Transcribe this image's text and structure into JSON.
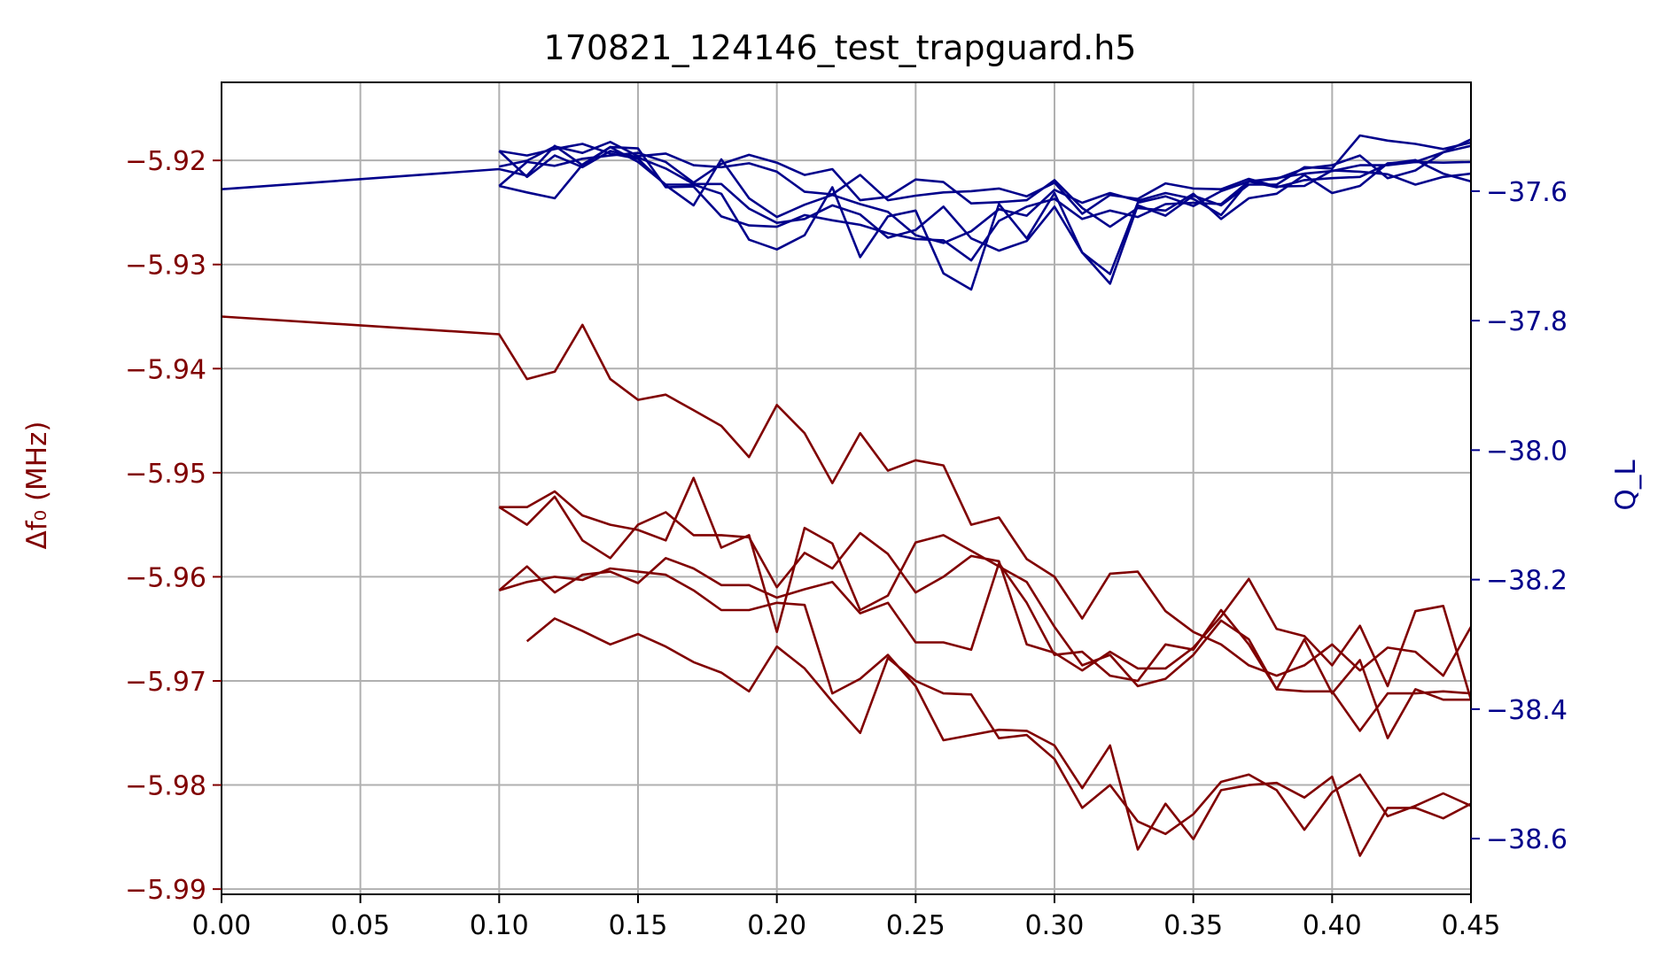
{
  "chart_data": {
    "type": "line",
    "title": "170821_124146_test_trapguard.h5",
    "xlabel": "",
    "xlim": [
      0.0,
      0.45
    ],
    "x_ticks": [
      "0.00",
      "0.05",
      "0.10",
      "0.15",
      "0.20",
      "0.25",
      "0.30",
      "0.35",
      "0.40",
      "0.45"
    ],
    "grid": true,
    "left_axis": {
      "label": "Δf₀ (MHz)",
      "color": "#800000",
      "ylim": [
        -5.9905,
        -5.9125
      ],
      "ticks": [
        "−5.92",
        "−5.93",
        "−5.94",
        "−5.95",
        "−5.96",
        "−5.97",
        "−5.98",
        "−5.99"
      ],
      "tick_values": [
        -5.92,
        -5.93,
        -5.94,
        -5.95,
        -5.96,
        -5.97,
        -5.98,
        -5.99
      ]
    },
    "right_axis": {
      "label": "Q_L",
      "color": "#00008b",
      "ylim": [
        -38.686,
        -37.432
      ],
      "ticks": [
        "−37.6",
        "−37.8",
        "−38.0",
        "−38.2",
        "−38.4",
        "−38.6"
      ],
      "tick_values": [
        -37.6,
        -37.8,
        -38.0,
        -38.2,
        -38.4,
        -38.6
      ]
    },
    "series_left": [
      {
        "x": [
          0.0,
          0.1,
          0.11,
          0.12,
          0.13,
          0.14,
          0.15,
          0.16,
          0.17,
          0.18,
          0.19,
          0.2,
          0.21,
          0.22,
          0.23,
          0.24,
          0.25,
          0.26,
          0.27,
          0.28,
          0.29,
          0.3,
          0.31,
          0.32,
          0.33,
          0.34,
          0.35,
          0.36,
          0.37,
          0.38,
          0.39,
          0.4,
          0.41,
          0.42,
          0.43,
          0.44,
          0.45
        ],
        "values": [
          -5.935,
          -5.9367,
          -5.941,
          -5.9403,
          -5.9358,
          -5.941,
          -5.943,
          -5.9425,
          -5.944,
          -5.9455,
          -5.9485,
          -5.9435,
          -5.9462,
          -5.951,
          -5.9462,
          -5.9498,
          -5.9488,
          -5.9493,
          -5.955,
          -5.9543,
          -5.9583,
          -5.96,
          -5.964,
          -5.9597,
          -5.9595,
          -5.9633,
          -5.9653,
          -5.9665,
          -5.9685,
          -5.9695,
          -5.9685,
          -5.9665,
          -5.969,
          -5.9668,
          -5.9672,
          -5.9695,
          -5.9648
        ]
      },
      {
        "x": [
          0.1,
          0.11,
          0.12,
          0.13,
          0.14,
          0.15,
          0.16,
          0.17,
          0.18,
          0.19,
          0.2,
          0.21,
          0.22,
          0.23,
          0.24,
          0.25,
          0.26,
          0.27,
          0.28,
          0.29,
          0.3,
          0.31,
          0.32,
          0.33,
          0.34,
          0.35,
          0.36,
          0.37,
          0.38,
          0.39,
          0.4,
          0.41,
          0.42,
          0.43,
          0.44,
          0.45
        ],
        "values": [
          -5.9533,
          -5.9533,
          -5.9518,
          -5.9541,
          -5.955,
          -5.9555,
          -5.9565,
          -5.9505,
          -5.9572,
          -5.956,
          -5.9653,
          -5.9553,
          -5.9568,
          -5.9632,
          -5.9618,
          -5.9567,
          -5.956,
          -5.9575,
          -5.959,
          -5.9605,
          -5.9648,
          -5.9685,
          -5.9675,
          -5.9705,
          -5.9698,
          -5.9675,
          -5.9642,
          -5.966,
          -5.9708,
          -5.971,
          -5.971,
          -5.9748,
          -5.9712,
          -5.9712,
          -5.971,
          -5.9712
        ]
      },
      {
        "x": [
          0.1,
          0.11,
          0.12,
          0.13,
          0.14,
          0.15,
          0.16,
          0.17,
          0.18,
          0.19,
          0.2,
          0.21,
          0.22,
          0.23,
          0.24,
          0.25,
          0.26,
          0.27,
          0.28,
          0.29,
          0.3,
          0.31,
          0.32,
          0.33,
          0.34,
          0.35,
          0.36,
          0.37,
          0.38,
          0.39,
          0.4,
          0.41,
          0.42,
          0.43,
          0.44,
          0.45
        ],
        "values": [
          -5.9533,
          -5.955,
          -5.9523,
          -5.9565,
          -5.9582,
          -5.955,
          -5.9538,
          -5.956,
          -5.956,
          -5.9562,
          -5.961,
          -5.9577,
          -5.9592,
          -5.9558,
          -5.9578,
          -5.9615,
          -5.96,
          -5.958,
          -5.9585,
          -5.9665,
          -5.9673,
          -5.969,
          -5.9672,
          -5.9688,
          -5.9688,
          -5.9668,
          -5.9638,
          -5.9602,
          -5.965,
          -5.9657,
          -5.9685,
          -5.9647,
          -5.9705,
          -5.9633,
          -5.9628,
          -5.9718
        ]
      },
      {
        "x": [
          0.1,
          0.11,
          0.12,
          0.13,
          0.14,
          0.15,
          0.16,
          0.17,
          0.18,
          0.19,
          0.2,
          0.21,
          0.22,
          0.23,
          0.24,
          0.25,
          0.26,
          0.27,
          0.28,
          0.29,
          0.3,
          0.31,
          0.32,
          0.33,
          0.34,
          0.35,
          0.36,
          0.37,
          0.38,
          0.39,
          0.4,
          0.41,
          0.42,
          0.43,
          0.44,
          0.45
        ],
        "values": [
          -5.9613,
          -5.959,
          -5.9615,
          -5.9598,
          -5.9595,
          -5.9606,
          -5.9582,
          -5.9592,
          -5.9608,
          -5.9608,
          -5.962,
          -5.9612,
          -5.9605,
          -5.9635,
          -5.9625,
          -5.9663,
          -5.9663,
          -5.967,
          -5.9587,
          -5.9625,
          -5.9675,
          -5.9672,
          -5.9695,
          -5.97,
          -5.9665,
          -5.967,
          -5.9632,
          -5.9665,
          -5.9708,
          -5.966,
          -5.9712,
          -5.968,
          -5.9755,
          -5.9708,
          -5.9718,
          -5.9718
        ]
      },
      {
        "x": [
          0.1,
          0.11,
          0.12,
          0.13,
          0.14,
          0.15,
          0.16,
          0.17,
          0.18,
          0.19,
          0.2,
          0.21,
          0.22,
          0.23,
          0.24,
          0.25,
          0.26,
          0.27,
          0.28,
          0.29,
          0.3,
          0.31,
          0.32,
          0.33,
          0.34,
          0.35,
          0.36,
          0.37,
          0.38,
          0.39,
          0.4,
          0.41,
          0.42,
          0.43,
          0.44,
          0.45
        ],
        "values": [
          -5.9613,
          -5.9605,
          -5.96,
          -5.9603,
          -5.9592,
          -5.9595,
          -5.9598,
          -5.9613,
          -5.9632,
          -5.9632,
          -5.9625,
          -5.9627,
          -5.9712,
          -5.9698,
          -5.9675,
          -5.9705,
          -5.9757,
          -5.9752,
          -5.9747,
          -5.9748,
          -5.9762,
          -5.9803,
          -5.9762,
          -5.9862,
          -5.9818,
          -5.9852,
          -5.9805,
          -5.98,
          -5.9798,
          -5.9812,
          -5.9792,
          -5.9868,
          -5.9822,
          -5.9822,
          -5.9832,
          -5.9818
        ]
      },
      {
        "x": [
          0.11,
          0.12,
          0.13,
          0.14,
          0.15,
          0.16,
          0.17,
          0.18,
          0.19,
          0.2,
          0.21,
          0.22,
          0.23,
          0.24,
          0.25,
          0.26,
          0.27,
          0.28,
          0.29,
          0.3,
          0.31,
          0.32,
          0.33,
          0.34,
          0.35,
          0.36,
          0.37,
          0.38,
          0.39,
          0.4,
          0.41,
          0.42,
          0.43,
          0.44,
          0.45
        ],
        "values": [
          -5.9662,
          -5.964,
          -5.9652,
          -5.9665,
          -5.9655,
          -5.9667,
          -5.9682,
          -5.9692,
          -5.971,
          -5.9667,
          -5.9688,
          -5.972,
          -5.975,
          -5.9678,
          -5.97,
          -5.9712,
          -5.9713,
          -5.9755,
          -5.9752,
          -5.9775,
          -5.9822,
          -5.98,
          -5.9835,
          -5.9847,
          -5.9828,
          -5.9797,
          -5.979,
          -5.9805,
          -5.9843,
          -5.9807,
          -5.979,
          -5.983,
          -5.982,
          -5.9808,
          -5.982
        ]
      }
    ],
    "series_right": [
      {
        "x": [
          0.0,
          0.1,
          0.11,
          0.12,
          0.13,
          0.14,
          0.15,
          0.16,
          0.17,
          0.18,
          0.19,
          0.2,
          0.21,
          0.22,
          0.23,
          0.24,
          0.25,
          0.26,
          0.27,
          0.28,
          0.29,
          0.3,
          0.31,
          0.32,
          0.33,
          0.34,
          0.35,
          0.36,
          0.37,
          0.38,
          0.39,
          0.4,
          0.41,
          0.42,
          0.43,
          0.44,
          0.45
        ],
        "values": [
          -37.597,
          -37.566,
          -37.576,
          -37.53,
          -37.56,
          -37.532,
          -37.555,
          -37.59,
          -37.59,
          -37.604,
          -37.675,
          -37.69,
          -37.668,
          -37.594,
          -37.702,
          -37.639,
          -37.63,
          -37.727,
          -37.752,
          -37.62,
          -37.673,
          -37.603,
          -37.695,
          -37.728,
          -37.618,
          -37.608,
          -37.623,
          -37.6,
          -37.585,
          -37.581,
          -37.565,
          -37.56,
          -37.545,
          -37.58,
          -37.568,
          -37.54,
          -37.52
        ]
      },
      {
        "x": [
          0.1,
          0.11,
          0.12,
          0.13,
          0.14,
          0.15,
          0.16,
          0.17,
          0.18,
          0.19,
          0.2,
          0.21,
          0.22,
          0.23,
          0.24,
          0.25,
          0.26,
          0.27,
          0.28,
          0.29,
          0.3,
          0.31,
          0.32,
          0.33,
          0.34,
          0.35,
          0.36,
          0.37,
          0.38,
          0.39,
          0.4,
          0.41,
          0.42,
          0.43,
          0.44,
          0.45
        ],
        "values": [
          -37.538,
          -37.578,
          -37.545,
          -37.563,
          -37.538,
          -37.548,
          -37.565,
          -37.589,
          -37.589,
          -37.627,
          -37.649,
          -37.643,
          -37.622,
          -37.636,
          -37.672,
          -37.66,
          -37.624,
          -37.673,
          -37.692,
          -37.677,
          -37.624,
          -37.695,
          -37.743,
          -37.622,
          -37.638,
          -37.607,
          -37.622,
          -37.59,
          -37.59,
          -37.563,
          -37.565,
          -37.514,
          -37.522,
          -37.527,
          -37.535,
          -37.525
        ]
      },
      {
        "x": [
          0.1,
          0.11,
          0.12,
          0.13,
          0.14,
          0.15,
          0.16,
          0.17,
          0.18,
          0.19,
          0.2,
          0.21,
          0.22,
          0.23,
          0.24,
          0.25,
          0.26,
          0.27,
          0.28,
          0.29,
          0.3,
          0.31,
          0.32,
          0.33,
          0.34,
          0.35,
          0.36,
          0.37,
          0.38,
          0.39,
          0.4,
          0.41,
          0.42,
          0.43,
          0.44,
          0.45
        ],
        "values": [
          -37.538,
          -37.545,
          -37.535,
          -37.527,
          -37.542,
          -37.55,
          -37.591,
          -37.622,
          -37.551,
          -37.611,
          -37.64,
          -37.621,
          -37.606,
          -37.62,
          -37.632,
          -37.668,
          -37.68,
          -37.662,
          -37.628,
          -37.638,
          -37.598,
          -37.618,
          -37.603,
          -37.615,
          -37.603,
          -37.612,
          -37.637,
          -37.585,
          -37.594,
          -37.583,
          -37.58,
          -37.578,
          -37.558,
          -37.552,
          -37.573,
          -37.585
        ]
      },
      {
        "x": [
          0.1,
          0.11,
          0.12,
          0.13,
          0.14,
          0.15,
          0.16,
          0.17,
          0.18,
          0.19,
          0.2,
          0.21,
          0.22,
          0.23,
          0.24,
          0.25,
          0.26,
          0.27,
          0.28,
          0.29,
          0.3,
          0.31,
          0.32,
          0.33,
          0.34,
          0.35,
          0.36,
          0.37,
          0.38,
          0.39,
          0.4,
          0.41,
          0.42,
          0.43,
          0.44,
          0.45
        ],
        "values": [
          -37.592,
          -37.602,
          -37.611,
          -37.559,
          -37.532,
          -37.534,
          -37.594,
          -37.593,
          -37.639,
          -37.653,
          -37.655,
          -37.637,
          -37.645,
          -37.652,
          -37.665,
          -37.674,
          -37.676,
          -37.707,
          -37.646,
          -37.624,
          -37.612,
          -37.643,
          -37.63,
          -37.64,
          -37.62,
          -37.618,
          -37.62,
          -37.585,
          -37.58,
          -37.573,
          -37.569,
          -37.56,
          -37.56,
          -37.555,
          -37.54,
          -37.53
        ]
      },
      {
        "x": [
          0.1,
          0.11,
          0.12,
          0.13,
          0.14,
          0.15,
          0.16,
          0.17,
          0.18,
          0.19,
          0.2,
          0.21,
          0.22,
          0.23,
          0.24,
          0.25,
          0.26,
          0.27,
          0.28,
          0.29,
          0.3,
          0.31,
          0.32,
          0.33,
          0.34,
          0.35,
          0.36,
          0.37,
          0.38,
          0.39,
          0.4,
          0.41,
          0.42,
          0.43,
          0.44,
          0.45
        ],
        "values": [
          -37.592,
          -37.555,
          -37.561,
          -37.55,
          -37.545,
          -37.541,
          -37.555,
          -37.587,
          -37.558,
          -37.544,
          -37.556,
          -37.575,
          -37.566,
          -37.614,
          -37.609,
          -37.582,
          -37.586,
          -37.619,
          -37.617,
          -37.614,
          -37.583,
          -37.626,
          -37.655,
          -37.626,
          -37.63,
          -37.604,
          -37.643,
          -37.611,
          -37.604,
          -37.575,
          -37.603,
          -37.592,
          -37.557,
          -37.555,
          -37.556,
          -37.555
        ]
      },
      {
        "x": [
          0.1,
          0.11,
          0.12,
          0.13,
          0.14,
          0.15,
          0.16,
          0.17,
          0.18,
          0.19,
          0.2,
          0.21,
          0.22,
          0.23,
          0.24,
          0.25,
          0.26,
          0.27,
          0.28,
          0.29,
          0.3,
          0.31,
          0.32,
          0.33,
          0.34,
          0.35,
          0.36,
          0.37,
          0.38,
          0.39,
          0.4,
          0.41,
          0.42,
          0.43,
          0.44,
          0.45
        ],
        "values": [
          -37.562,
          -37.553,
          -37.531,
          -37.541,
          -37.524,
          -37.546,
          -37.542,
          -37.56,
          -37.563,
          -37.557,
          -37.57,
          -37.601,
          -37.605,
          -37.575,
          -37.614,
          -37.607,
          -37.602,
          -37.6,
          -37.596,
          -37.608,
          -37.587,
          -37.635,
          -37.606,
          -37.612,
          -37.588,
          -37.596,
          -37.597,
          -37.581,
          -37.593,
          -37.592,
          -37.568,
          -37.57,
          -37.574,
          -37.59,
          -37.578,
          -37.573
        ]
      }
    ]
  }
}
